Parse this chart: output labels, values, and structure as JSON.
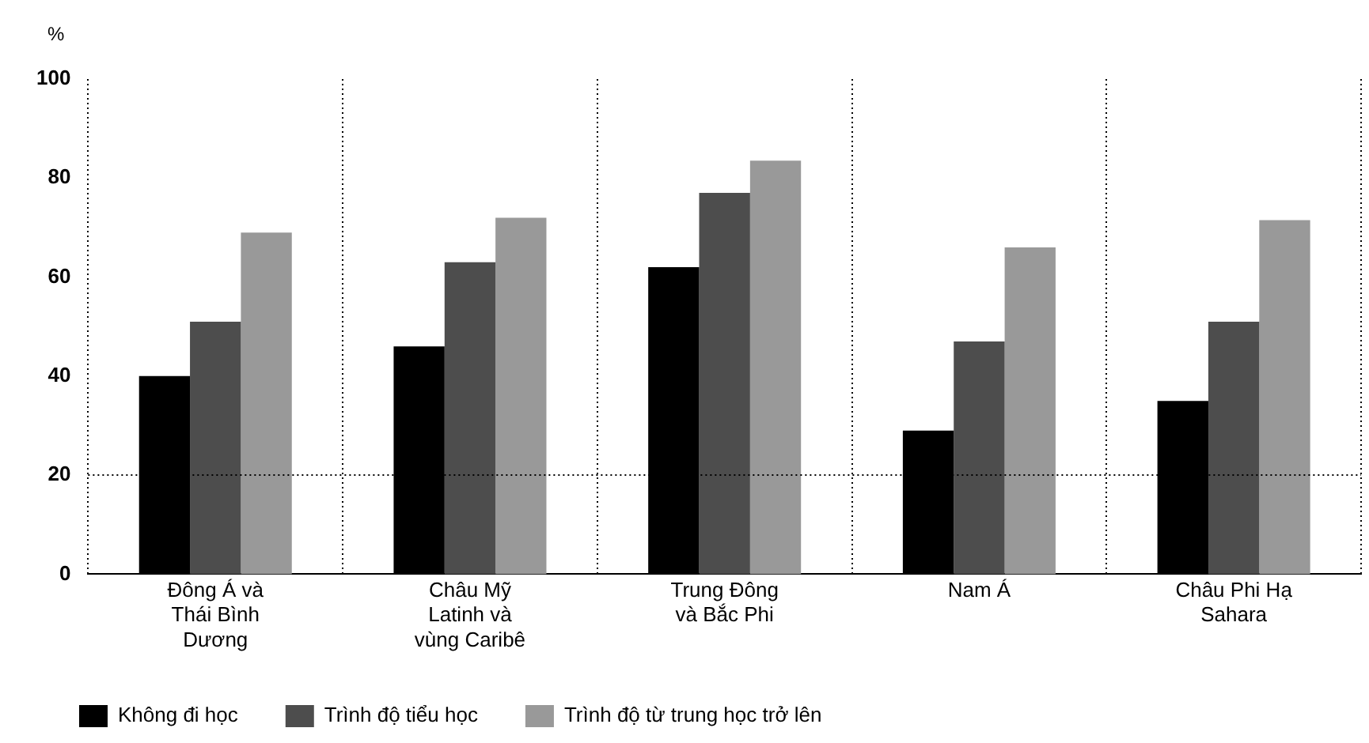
{
  "chart_data": {
    "type": "bar",
    "ylabel": "%",
    "categories": [
      "Đông Á và Thái Bình Dương",
      "Châu Mỹ Latinh và vùng Caribê",
      "Trung Đông và Bắc Phi",
      "Nam Á",
      "Châu Phi Hạ Sahara"
    ],
    "series": [
      {
        "name": "Không đi học",
        "color": "#000000",
        "values": [
          40,
          46,
          62,
          29,
          35
        ]
      },
      {
        "name": "Trình độ tiểu học",
        "color": "#4d4d4d",
        "values": [
          51,
          63,
          77,
          47,
          51
        ]
      },
      {
        "name": "Trình độ từ trung học trở lên",
        "color": "#999999",
        "values": [
          69,
          72,
          83.5,
          66,
          71.5
        ]
      }
    ],
    "ylim": [
      0,
      100
    ],
    "yticks": [
      0,
      20,
      40,
      60,
      80,
      100
    ],
    "grid": "x",
    "ref_lines": [
      {
        "axis": "y",
        "value": 20,
        "line_style": "dotted"
      }
    ],
    "legend": "bottom"
  }
}
